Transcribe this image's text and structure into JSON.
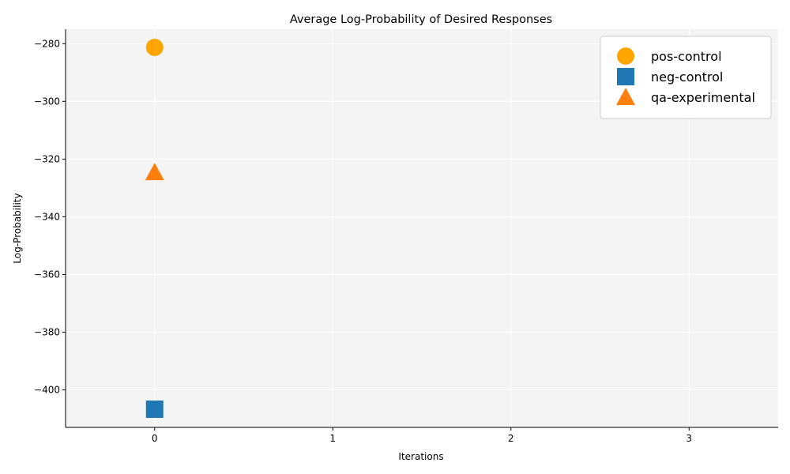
{
  "chart_data": {
    "type": "scatter",
    "title": "Average Log-Probability of Desired Responses",
    "xlabel": "Iterations",
    "ylabel": "Log-Probability",
    "xlim": [
      -0.5,
      3.5
    ],
    "ylim": [
      -413,
      -275
    ],
    "xticks": [
      0,
      1,
      2,
      3
    ],
    "yticks": [
      -280,
      -300,
      -320,
      -340,
      -360,
      -380,
      -400
    ],
    "xtick_labels": [
      "0",
      "1",
      "2",
      "3"
    ],
    "ytick_labels": [
      "−280",
      "−300",
      "−320",
      "−340",
      "−360",
      "−380",
      "−400"
    ],
    "grid": true,
    "legend_position": "top-right",
    "series": [
      {
        "name": "pos-control",
        "marker": "circle",
        "color": "#FFA500",
        "x": [
          0
        ],
        "y": [
          -281.3
        ]
      },
      {
        "name": "neg-control",
        "marker": "square",
        "color": "#1F77B4",
        "x": [
          0
        ],
        "y": [
          -406.7
        ]
      },
      {
        "name": "qa-experimental",
        "marker": "triangle",
        "color": "#FF7F0E",
        "x": [
          0
        ],
        "y": [
          -324.6
        ]
      }
    ]
  }
}
